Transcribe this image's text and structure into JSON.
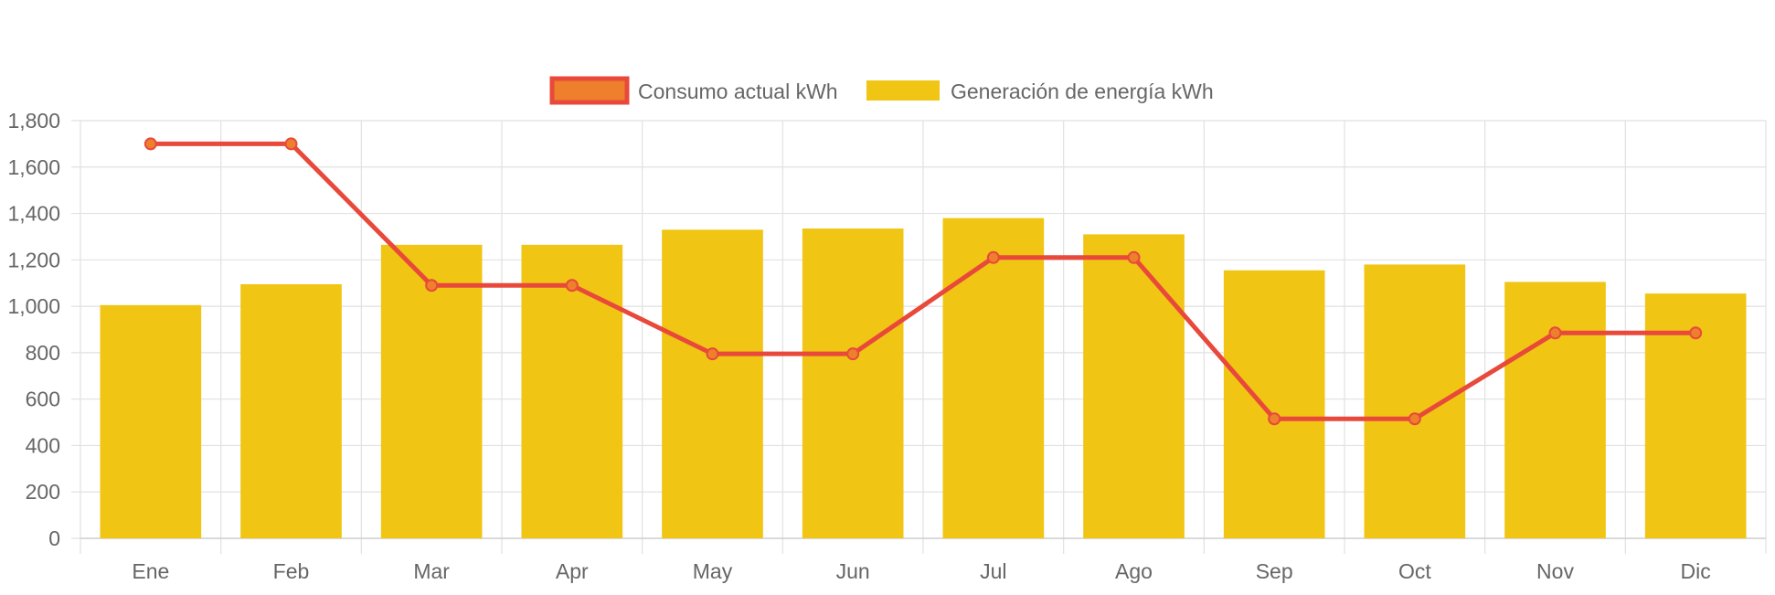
{
  "chart_data": {
    "type": "bar",
    "categories": [
      "Ene",
      "Feb",
      "Mar",
      "Apr",
      "May",
      "Jun",
      "Jul",
      "Ago",
      "Sep",
      "Oct",
      "Nov",
      "Dic"
    ],
    "series": [
      {
        "name": "Consumo actual kWh",
        "type": "line",
        "values": [
          1700,
          1700,
          1090,
          1090,
          795,
          795,
          1210,
          1210,
          515,
          515,
          885,
          885
        ],
        "color": "#e8493b",
        "point_color": "#ee7f2d"
      },
      {
        "name": "Generación de energía kWh",
        "type": "bar",
        "values": [
          1005,
          1095,
          1265,
          1265,
          1330,
          1335,
          1380,
          1310,
          1155,
          1180,
          1105,
          1055
        ],
        "color": "#f0c514"
      }
    ],
    "y_ticks": [
      "0",
      "200",
      "400",
      "600",
      "800",
      "1,000",
      "1,200",
      "1,400",
      "1,600",
      "1,800"
    ],
    "ylim": [
      0,
      1800
    ],
    "grid": true,
    "legend_position": "top"
  },
  "colors": {
    "grid": "#e1e1e1",
    "axis_text": "#666666"
  }
}
